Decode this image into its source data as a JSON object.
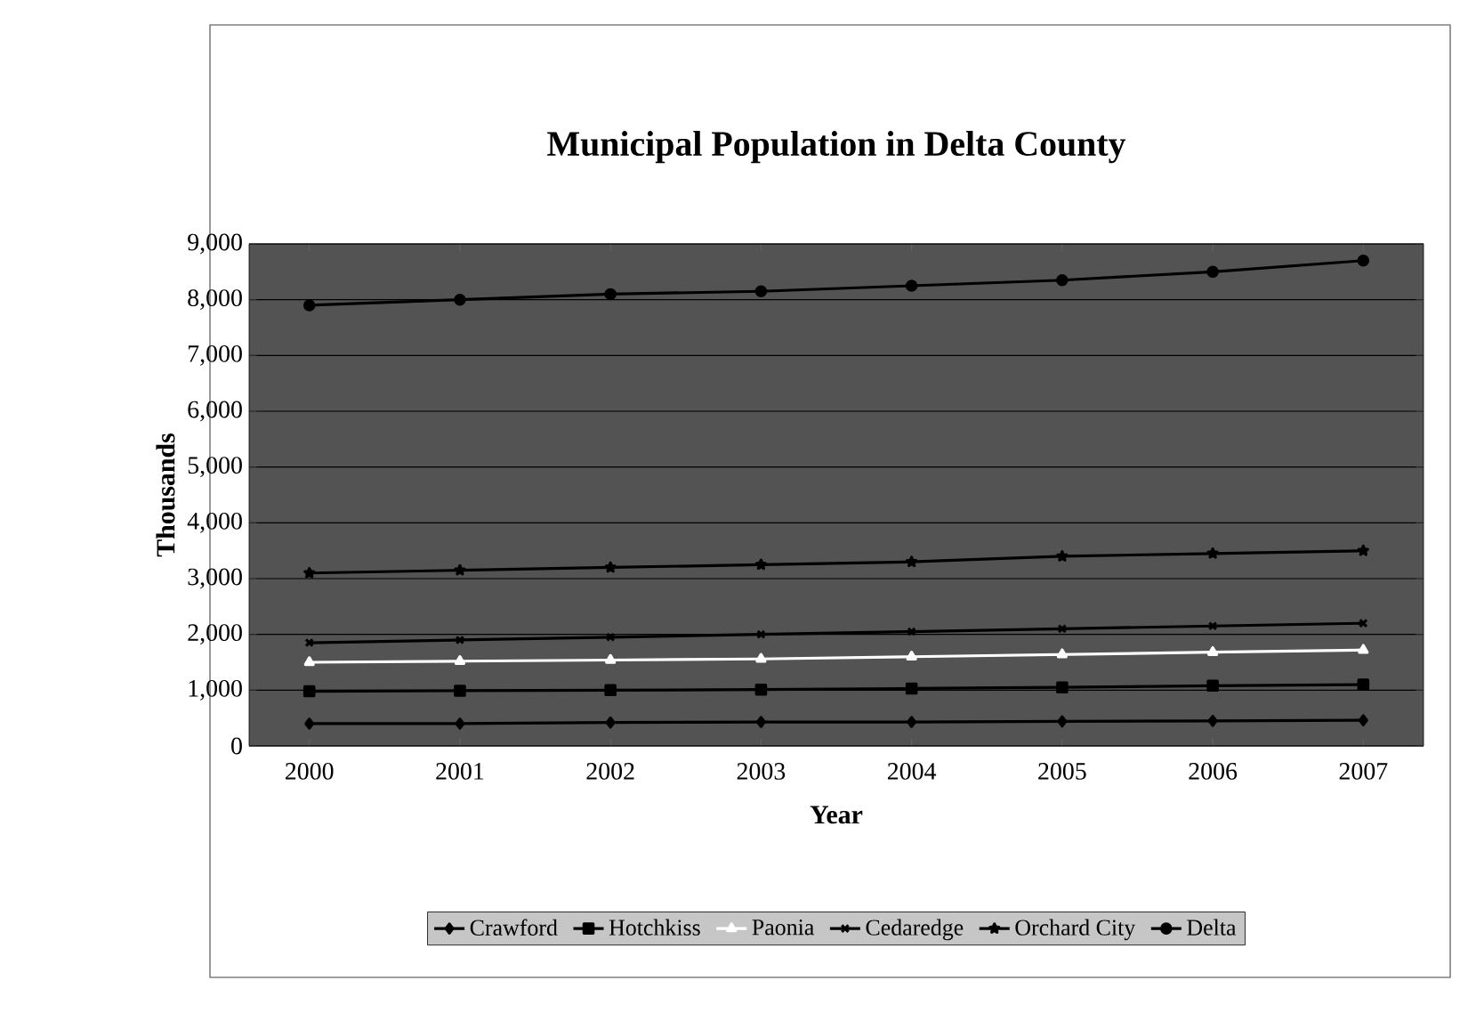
{
  "chart_data": {
    "type": "line",
    "title": "Municipal Population in Delta County",
    "xlabel": "Year",
    "ylabel": "Thousands",
    "categories": [
      "2000",
      "2001",
      "2002",
      "2003",
      "2004",
      "2005",
      "2006",
      "2007"
    ],
    "ylim": [
      0,
      9000
    ],
    "yticks": [
      0,
      {
        "value": 1000,
        "label": "1,000"
      },
      {
        "value": 2000,
        "label": "2,000"
      },
      {
        "value": 3000,
        "label": "3,000"
      },
      {
        "value": 4000,
        "label": "4,000"
      },
      {
        "value": 5000,
        "label": "5,000"
      },
      {
        "value": 6000,
        "label": "6,000"
      },
      {
        "value": 7000,
        "label": "7,000"
      },
      {
        "value": 8000,
        "label": "8,000"
      },
      {
        "value": 9000,
        "label": "9,000"
      }
    ],
    "grid": "y",
    "legend": "bottom",
    "line_style": "solid",
    "series": [
      {
        "name": "Crawford",
        "color": "#000000",
        "marker": "diamond",
        "values": [
          400,
          400,
          420,
          430,
          430,
          440,
          450,
          460
        ]
      },
      {
        "name": "Hotchkiss",
        "color": "#000000",
        "marker": "square",
        "values": [
          980,
          990,
          1000,
          1010,
          1030,
          1050,
          1080,
          1100
        ]
      },
      {
        "name": "Paonia",
        "color": "#ffffff",
        "marker": "triangle",
        "values": [
          1500,
          1520,
          1540,
          1560,
          1600,
          1640,
          1680,
          1720
        ]
      },
      {
        "name": "Cedaredge",
        "color": "#000000",
        "marker": "cross",
        "values": [
          1850,
          1900,
          1950,
          2000,
          2050,
          2100,
          2150,
          2200
        ]
      },
      {
        "name": "Orchard City",
        "color": "#000000",
        "marker": "star",
        "values": [
          3100,
          3150,
          3200,
          3250,
          3300,
          3400,
          3450,
          3500
        ]
      },
      {
        "name": "Delta",
        "color": "#000000",
        "marker": "circle",
        "values": [
          7900,
          8000,
          8100,
          8150,
          8250,
          8350,
          8500,
          8700
        ]
      }
    ]
  }
}
